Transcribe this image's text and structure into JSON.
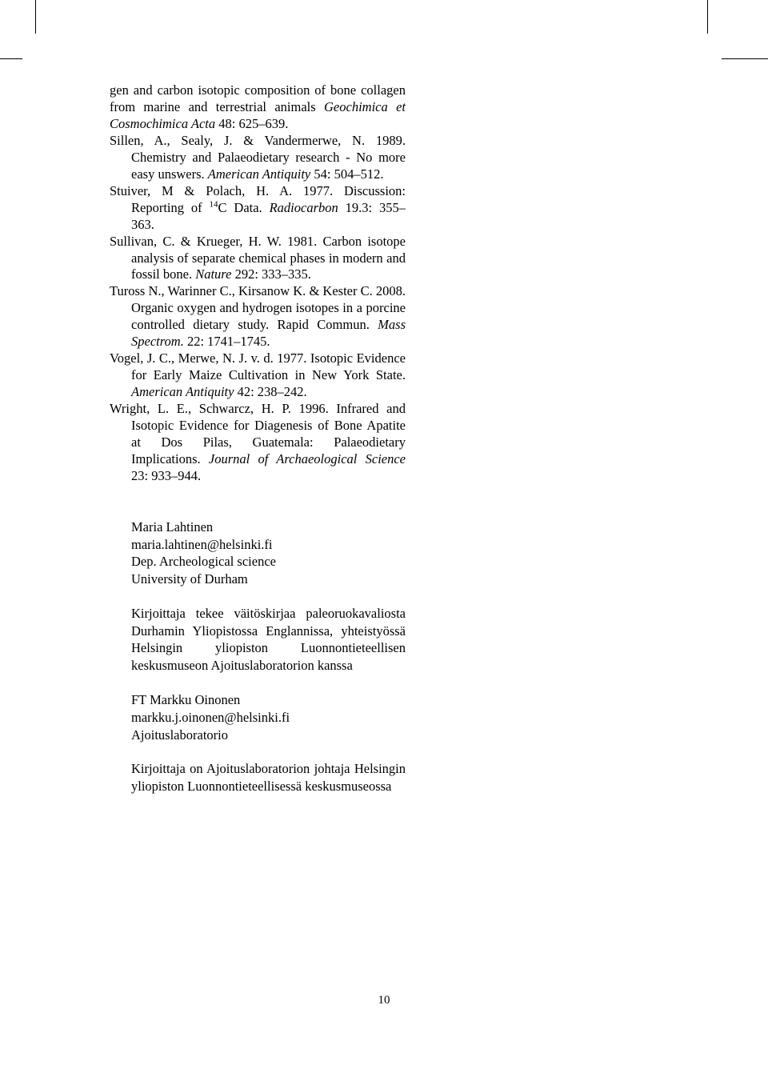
{
  "references": [
    {
      "segments": [
        {
          "text": "gen and carbon isotopic composition of bone collagen from marine and terrestrial animals ",
          "style": "normal",
          "noIndent": true
        },
        {
          "text": "Geochimica et Cosmochimica Acta",
          "style": "italic"
        },
        {
          "text": " 48: 625–639.",
          "style": "normal"
        }
      ]
    },
    {
      "segments": [
        {
          "text": "Sillen, A., Sealy, J. & Vandermerwe, N. 1989. Chemistry and Palaeodietary research - No more easy unswers. ",
          "style": "normal"
        },
        {
          "text": "American Antiquity",
          "style": "italic"
        },
        {
          "text": " 54: 504–512.",
          "style": "normal"
        }
      ]
    },
    {
      "segments": [
        {
          "text": "Stuiver, M & Polach, H. A. 1977. Discussion: Reporting of ",
          "style": "normal"
        },
        {
          "text": "14",
          "style": "sup"
        },
        {
          "text": "C Data. ",
          "style": "normal"
        },
        {
          "text": "Radiocarbon",
          "style": "italic"
        },
        {
          "text": " 19.3: 355–363.",
          "style": "normal"
        }
      ]
    },
    {
      "segments": [
        {
          "text": "Sullivan, C. & Krueger, H. W. 1981. Carbon isotope analysis of separate chemical phases in modern and fossil bone. ",
          "style": "normal"
        },
        {
          "text": "Nature",
          "style": "italic"
        },
        {
          "text": " 292: 333–335.",
          "style": "normal"
        }
      ]
    },
    {
      "segments": [
        {
          "text": "Tuross N., Warinner C., Kirsanow K. & Kester C. 2008. Organic oxygen and hydrogen isotopes in a porcine controlled dietary study. Rapid Commun. ",
          "style": "normal"
        },
        {
          "text": "Mass Spectrom.",
          "style": "italic"
        },
        {
          "text": " 22: 1741–1745.",
          "style": "normal"
        }
      ]
    },
    {
      "segments": [
        {
          "text": "Vogel, J. C., Merwe, N. J. v. d. 1977. Isotopic Evidence for Early Maize Cultivation in New York State. ",
          "style": "normal"
        },
        {
          "text": "American Antiquity",
          "style": "italic"
        },
        {
          "text": " 42: 238–242.",
          "style": "normal"
        }
      ]
    },
    {
      "segments": [
        {
          "text": "Wright, L. E., Schwarcz, H. P. 1996. Infrared and Isotopic Evidence for Diagenesis of Bone Apatite at Dos Pilas, Guatemala: Palaeodietary Implications. ",
          "style": "normal"
        },
        {
          "text": "Journal of Archaeological Science",
          "style": "italic"
        },
        {
          "text": " 23: 933–944.",
          "style": "normal"
        }
      ]
    }
  ],
  "authors": [
    {
      "lines": [
        "Maria Lahtinen",
        "maria.lahtinen@helsinki.fi",
        "Dep. Archeological science",
        "University of Durham"
      ]
    },
    {
      "text": "Kirjoittaja tekee väitöskirjaa paleoruokavaliosta Durhamin Yliopistossa Englannissa, yhteistyössä Helsingin yliopiston Luonnontieteellisen keskusmuseon Ajoituslaboratorion kanssa"
    },
    {
      "lines": [
        "FT Markku Oinonen",
        "markku.j.oinonen@helsinki.fi",
        "Ajoituslaboratorio"
      ]
    },
    {
      "text": "Kirjoittaja on Ajoituslaboratorion johtaja Helsingin yliopiston Luonnontieteellisessä keskusmuseossa"
    }
  ],
  "pageNumber": "10",
  "styles": {
    "textColor": "#000000",
    "backgroundColor": "#ffffff",
    "bodyFontSize": 16.5,
    "pageNumFontSize": 15
  }
}
